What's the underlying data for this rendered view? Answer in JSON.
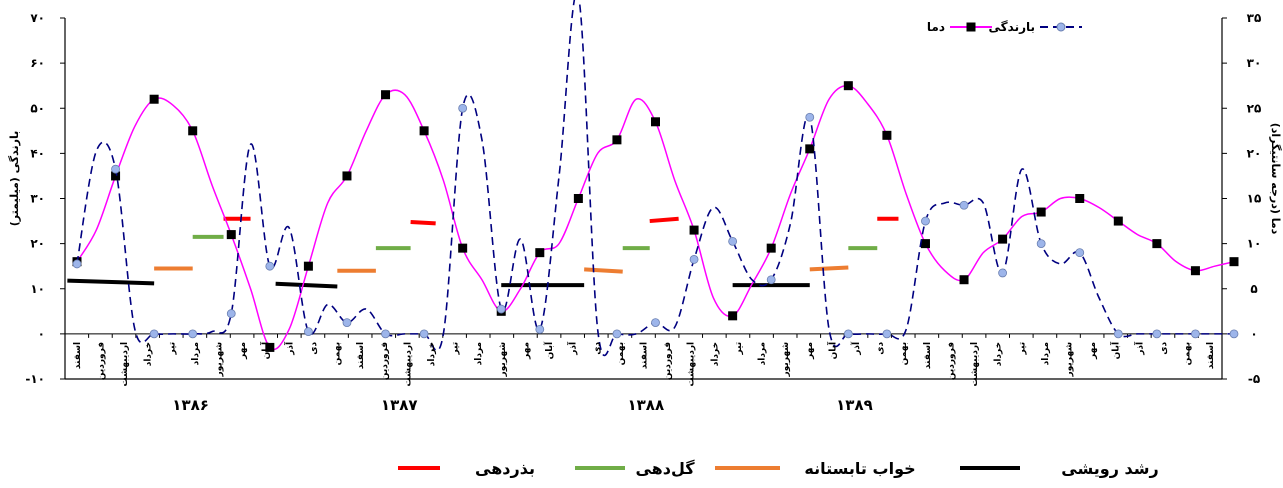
{
  "chart_data": {
    "type": "line",
    "months": [
      "اسفند",
      "فروردين",
      "ارديبهشت",
      "خرداد",
      "تير",
      "مرداد",
      "شهريور",
      "مهر",
      "آبان",
      "آذر",
      "دی",
      "بهمن",
      "اسفند",
      "فروردين",
      "ارديبهشت",
      "خرداد",
      "تير",
      "مرداد",
      "شهريور",
      "مهر",
      "آبان",
      "آذر",
      "دی",
      "بهمن",
      "اسفند",
      "فروردين",
      "ارديبهشت",
      "خرداد",
      "تير",
      "مرداد",
      "شهريور",
      "مهر",
      "آبان",
      "آذر",
      "دی",
      "بهمن",
      "اسفند",
      "فروردين",
      "ارديبهشت",
      "خرداد",
      "تير",
      "مرداد",
      "شهريور",
      "مهر",
      "آبان",
      "آذر",
      "دی",
      "بهمن",
      "اسفند",
      "فروردين",
      "ارديبهشت",
      "خرداد",
      "تير",
      "مرداد",
      "شهريور",
      "مهر",
      "آبان",
      "آذر",
      "دی",
      "بهمن",
      "اسفند"
    ],
    "month_labels_shown": [
      "اسفند",
      "فروردين",
      "ارديبهشت",
      "خرداد",
      "تير",
      "مرداد",
      "شهريور",
      "مهر",
      "آبان",
      "آذر",
      "دی",
      "بهمن",
      "اسفند",
      "فروردين",
      "ارديبهشت",
      "خرداد",
      "تير",
      "مرداد",
      "شهريور",
      "مهر",
      "آبان",
      "آذر",
      "دی",
      "بهمن",
      "اسفند",
      "فروردين",
      "ارديبهشت",
      "خرداد",
      "تير",
      "مرداد",
      "شهريور",
      "مهر",
      "آبان",
      "آذر",
      "دی",
      "بهمن",
      "اسفند",
      "فروردين",
      "ارديبهشت",
      "خرداد",
      "تير",
      "مرداد",
      "شهريور",
      "مهر",
      "آبان",
      "آذر",
      "دی",
      "بهمن",
      "اسفند"
    ],
    "years": [
      {
        "label": "۱۳۸۶",
        "center_index": 6
      },
      {
        "label": "۱۳۸۷",
        "center_index": 17
      },
      {
        "label": "۱۳۸۸",
        "center_index": 30
      },
      {
        "label": "۱۳۸۹",
        "center_index": 41
      }
    ],
    "left_axis": {
      "title": "بارندگی (میلیمتر)",
      "min": -10,
      "max": 70,
      "ticks": [
        -10,
        0,
        10,
        20,
        30,
        40,
        50,
        60,
        70
      ],
      "tick_labels": [
        "-۱۰",
        "۰",
        "۱۰",
        "۲۰",
        "۳۰",
        "۴۰",
        "۵۰",
        "۶۰",
        "۷۰"
      ]
    },
    "right_axis": {
      "title": "دما (درجه سانتیگراد)",
      "min": -5,
      "max": 35,
      "ticks": [
        -5,
        0,
        5,
        10,
        15,
        20,
        25,
        30,
        35
      ],
      "tick_labels": [
        "-۵",
        "۰",
        "۵",
        "۱۰",
        "۱۵",
        "۲۰",
        "۲۵",
        "۳۰",
        "۳۵"
      ]
    },
    "series": [
      {
        "name": "دما",
        "axis": "right",
        "color": "#ff00ff",
        "marker": "square",
        "marker_color": "#000000",
        "values": [
          8,
          11.5,
          17.5,
          23,
          26,
          25.3,
          22.5,
          16.5,
          11,
          5,
          -1.5,
          0.5,
          7.5,
          14.5,
          17.5,
          22.5,
          26.5,
          26.5,
          22.5,
          17,
          9.5,
          6,
          2.5,
          5,
          9,
          10,
          15,
          20,
          21.5,
          26,
          23.5,
          17,
          11.5,
          4,
          2,
          5.5,
          9.5,
          15.5,
          20.5,
          26,
          27.5,
          25.5,
          22,
          15.5,
          10,
          7,
          6,
          9,
          10.5,
          13,
          13.5,
          15,
          15,
          14,
          12.5,
          11,
          10,
          8,
          7,
          7.5,
          8
        ]
      },
      {
        "name": "بارندگی",
        "axis": "left",
        "color": "#000080",
        "dash": "8 5",
        "marker": "circle",
        "marker_color": "#9db5ea",
        "values": [
          15.5,
          40.5,
          36.5,
          1,
          0,
          0,
          0,
          0.5,
          4.5,
          42,
          15,
          23.5,
          0.5,
          6.5,
          2.5,
          5.5,
          0,
          0,
          0,
          0,
          50,
          43,
          5.5,
          21,
          1,
          35,
          75,
          1,
          0,
          0,
          2.5,
          1.5,
          16.5,
          28,
          20.5,
          12,
          12,
          24.5,
          48,
          1,
          0,
          0,
          0,
          1,
          25,
          29,
          28.5,
          29,
          13.5,
          36.5,
          20,
          15.5,
          18,
          8,
          0,
          0,
          0,
          0,
          0,
          0,
          0
        ]
      }
    ],
    "phases": [
      {
        "name": "رشد رویشی",
        "color": "#000000"
      },
      {
        "name": "خواب تابستانه",
        "color": "#ed7d31"
      },
      {
        "name": "گل‌دهی",
        "color": "#70ad47"
      },
      {
        "name": "بذردهی",
        "color": "#ff0000"
      }
    ],
    "phase_segments": [
      {
        "phase": "رشد رویشی",
        "x0": -0.5,
        "x1": 4,
        "y0": 11.8,
        "y1": 11.2
      },
      {
        "phase": "خواب تابستانه",
        "x0": 4,
        "x1": 6,
        "y": 14.5
      },
      {
        "phase": "گل‌دهی",
        "x0": 6,
        "x1": 7.6,
        "y": 21.5
      },
      {
        "phase": "بذردهی",
        "x0": 7.6,
        "x1": 9,
        "y": 25.5
      },
      {
        "phase": "رشد رویشی",
        "x0": 10.3,
        "x1": 13.5,
        "y0": 11.1,
        "y1": 10.5
      },
      {
        "phase": "خواب تابستانه",
        "x0": 13.5,
        "x1": 15.5,
        "y": 14
      },
      {
        "phase": "گل‌دهی",
        "x0": 15.5,
        "x1": 17.3,
        "y": 19
      },
      {
        "phase": "بذردهی",
        "x0": 17.3,
        "x1": 18.6,
        "y0": 24.8,
        "y1": 24.5
      },
      {
        "phase": "رشد رویشی",
        "x0": 22,
        "x1": 26.3,
        "y": 10.8
      },
      {
        "phase": "خواب تابستانه",
        "x0": 26.3,
        "x1": 28.3,
        "y0": 14.3,
        "y1": 13.8
      },
      {
        "phase": "گل‌دهی",
        "x0": 28.3,
        "x1": 29.7,
        "y": 19
      },
      {
        "phase": "بذردهی",
        "x0": 29.7,
        "x1": 31.2,
        "y0": 25,
        "y1": 25.5
      },
      {
        "phase": "رشد رویشی",
        "x0": 34,
        "x1": 38,
        "y": 10.8
      },
      {
        "phase": "خواب تابستانه",
        "x0": 38,
        "x1": 40,
        "y0": 14.3,
        "y1": 14.7
      },
      {
        "phase": "گل‌دهی",
        "x0": 40,
        "x1": 41.5,
        "y": 19
      },
      {
        "phase": "بذردهی",
        "x0": 41.5,
        "x1": 42.6,
        "y": 25.5
      }
    ],
    "legend_placement": "top-right",
    "grid": false
  }
}
